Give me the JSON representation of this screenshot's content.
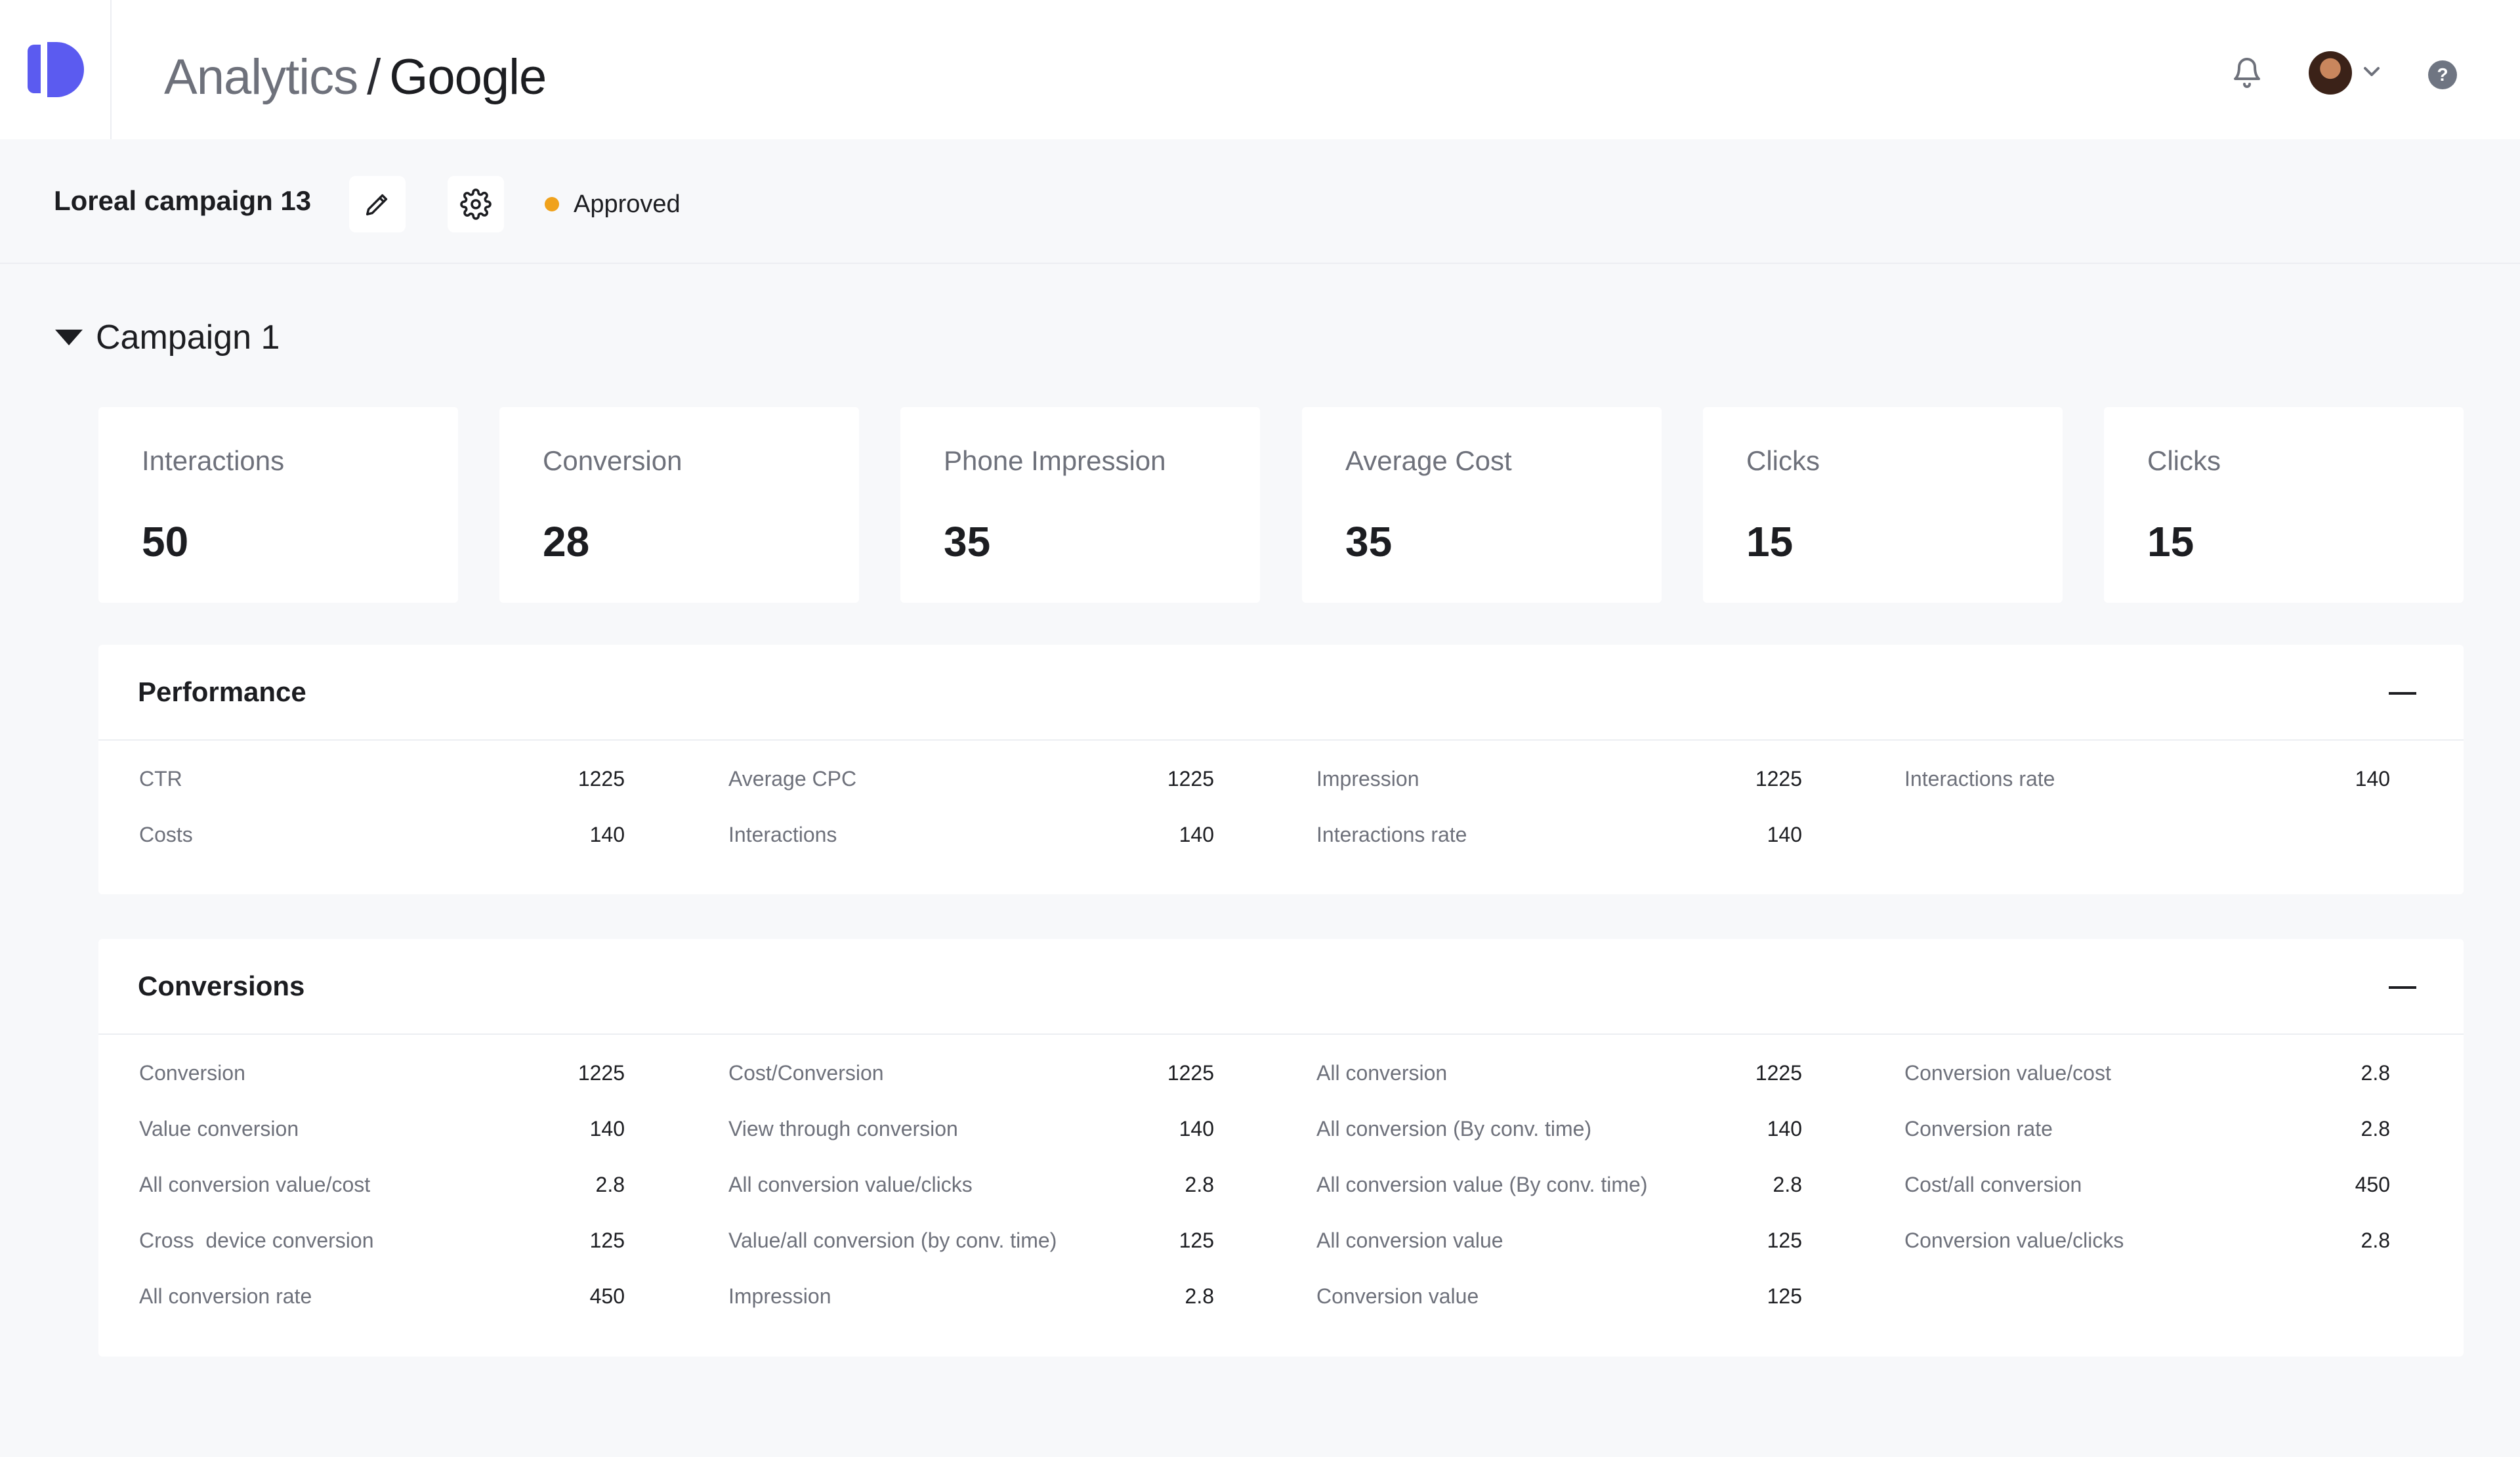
{
  "header": {
    "breadcrumb_parent": "Analytics",
    "separator": "/",
    "breadcrumb_current": "Google",
    "help_label": "?"
  },
  "campaign": {
    "name": "Loreal campaign 13",
    "status": "Approved",
    "status_color": "#f0a21c"
  },
  "section": {
    "title": "Campaign 1"
  },
  "stats": [
    {
      "label": "Interactions",
      "value": "50"
    },
    {
      "label": "Conversion",
      "value": "28"
    },
    {
      "label": "Phone Impression",
      "value": "35"
    },
    {
      "label": "Average Cost",
      "value": "35"
    },
    {
      "label": "Clicks",
      "value": "15"
    },
    {
      "label": "Clicks",
      "value": "15"
    }
  ],
  "performance": {
    "title": "Performance",
    "columns": [
      [
        {
          "label": "CTR",
          "value": "1225"
        },
        {
          "label": "Costs",
          "value": "140"
        }
      ],
      [
        {
          "label": "Average CPC",
          "value": "1225"
        },
        {
          "label": "Interactions",
          "value": "140"
        }
      ],
      [
        {
          "label": "Impression",
          "value": "1225"
        },
        {
          "label": "Interactions rate",
          "value": "140"
        }
      ],
      [
        {
          "label": "Interactions rate",
          "value": "140"
        }
      ]
    ]
  },
  "conversions": {
    "title": "Conversions",
    "columns": [
      [
        {
          "label": "Conversion",
          "value": "1225"
        },
        {
          "label": "Value conversion",
          "value": "140"
        },
        {
          "label": "All conversion value/cost",
          "value": "2.8"
        },
        {
          "label": "Cross  device conversion",
          "value": "125"
        },
        {
          "label": "All conversion rate",
          "value": "450"
        }
      ],
      [
        {
          "label": "Cost/Conversion",
          "value": "1225"
        },
        {
          "label": "View through conversion",
          "value": "140"
        },
        {
          "label": "All conversion value/clicks",
          "value": "2.8"
        },
        {
          "label": "Value/all conversion (by conv. time)",
          "value": "125"
        },
        {
          "label": "Impression",
          "value": "2.8"
        }
      ],
      [
        {
          "label": "All conversion",
          "value": "1225"
        },
        {
          "label": "All conversion (By conv. time)",
          "value": "140"
        },
        {
          "label": "All conversion value (By conv. time)",
          "value": "2.8"
        },
        {
          "label": "All conversion value",
          "value": "125"
        },
        {
          "label": "Conversion value",
          "value": "125"
        }
      ],
      [
        {
          "label": "Conversion value/cost",
          "value": "2.8"
        },
        {
          "label": "Conversion rate",
          "value": "2.8"
        },
        {
          "label": "Cost/all conversion",
          "value": "450"
        },
        {
          "label": "Conversion value/clicks",
          "value": "2.8"
        }
      ]
    ]
  },
  "colors": {
    "accent": "#5b5bf0",
    "text": "#1c1d21",
    "muted": "#6e717b",
    "background": "#f7f8fa"
  }
}
